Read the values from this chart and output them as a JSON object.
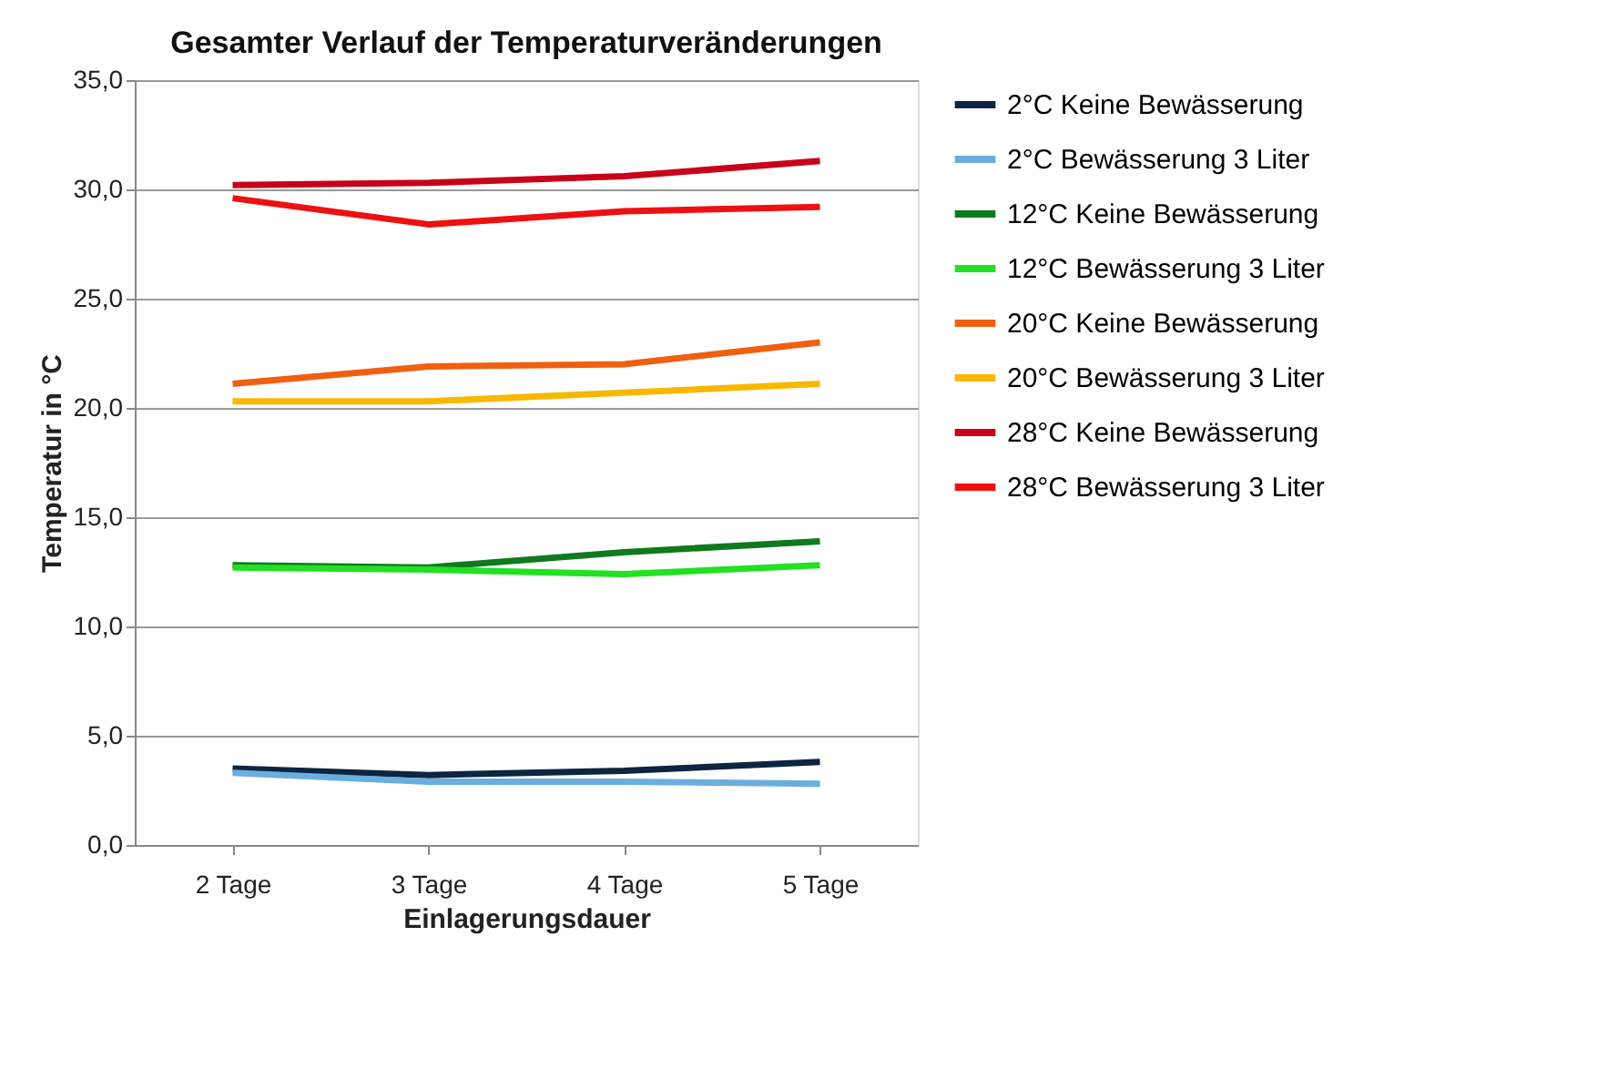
{
  "chart_data": {
    "type": "line",
    "title": "Gesamter Verlauf der Temperaturveränderungen",
    "xlabel": "Einlagerungsdauer",
    "ylabel": "Temperatur in °C",
    "categories": [
      "2 Tage",
      "3 Tage",
      "4 Tage",
      "5 Tage"
    ],
    "series": [
      {
        "name": "2°C Keine Bewässerung",
        "color": "#0d2540",
        "values": [
          3.5,
          3.2,
          3.4,
          3.8
        ]
      },
      {
        "name": "2°C Bewässerung 3 Liter",
        "color": "#6aaee0",
        "values": [
          3.3,
          2.9,
          2.9,
          2.8
        ]
      },
      {
        "name": "12°C Keine Bewässerung",
        "color": "#0f7a1e",
        "values": [
          12.8,
          12.7,
          13.4,
          13.9
        ]
      },
      {
        "name": "12°C Bewässerung 3 Liter",
        "color": "#22e022",
        "values": [
          12.7,
          12.6,
          12.4,
          12.8
        ]
      },
      {
        "name": "20°C Keine Bewässerung",
        "color": "#f06010",
        "values": [
          21.1,
          21.9,
          22.0,
          23.0
        ]
      },
      {
        "name": "20°C Bewässerung 3 Liter",
        "color": "#f8b800",
        "values": [
          20.3,
          20.3,
          20.7,
          21.1
        ]
      },
      {
        "name": "28°C Keine Bewässerung",
        "color": "#c8001a",
        "values": [
          30.2,
          30.3,
          30.6,
          31.3
        ]
      },
      {
        "name": "28°C Bewässerung 3 Liter",
        "color": "#ee1010",
        "values": [
          29.6,
          28.4,
          29.0,
          29.2
        ]
      }
    ],
    "ylim": [
      0,
      35
    ],
    "yticks": [
      {
        "value": 0,
        "label": "0,0"
      },
      {
        "value": 5,
        "label": "5,0"
      },
      {
        "value": 10,
        "label": "10,0"
      },
      {
        "value": 15,
        "label": "15,0"
      },
      {
        "value": 20,
        "label": "20,0"
      },
      {
        "value": 25,
        "label": "25,0"
      },
      {
        "value": 30,
        "label": "30,0"
      },
      {
        "value": 35,
        "label": "35,0"
      }
    ],
    "grid": "y",
    "legend": "right",
    "marker": "none",
    "line_style": "solid"
  }
}
